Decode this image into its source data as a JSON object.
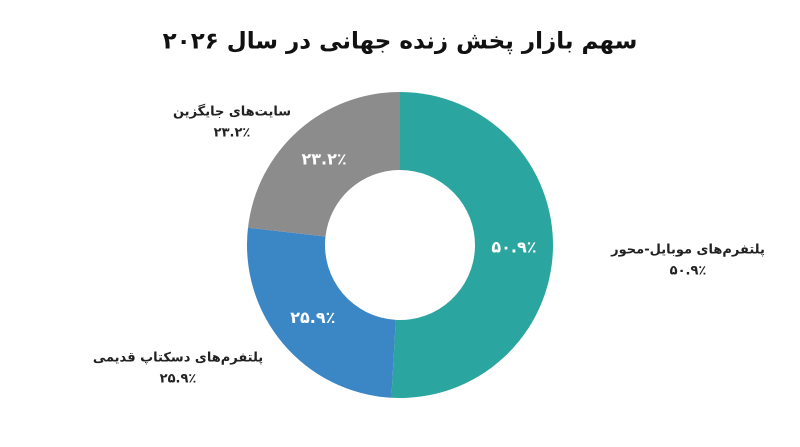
{
  "chart_data": {
    "type": "donut",
    "title": "سهم بازار پخش زنده جهانی در سال ۲۰۲۶",
    "categories": [
      "پلتفرم‌های موبایل-محور",
      "پلتفرم‌های دسکتاپ قدیمی",
      "سایت‌های جایگزین"
    ],
    "values": [
      50.9,
      25.9,
      23.2
    ],
    "value_labels": [
      "۵۰.۹٪",
      "۲۵.۹٪",
      "۲۳.۲٪"
    ],
    "colors": [
      "#2ba59f",
      "#3b87c6",
      "#8c8c8c"
    ]
  }
}
